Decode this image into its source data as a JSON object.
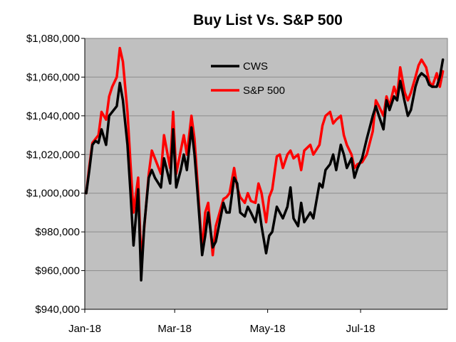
{
  "chart_data": {
    "type": "line",
    "title": "Buy List Vs. S&P 500",
    "xlabel": "",
    "ylabel": "",
    "ylim": [
      940000,
      1080000
    ],
    "y_ticks": [
      940000,
      960000,
      980000,
      1000000,
      1020000,
      1040000,
      1060000,
      1080000
    ],
    "y_tick_labels": [
      "$940,000",
      "$960,000",
      "$980,000",
      "$1,000,000",
      "$1,020,000",
      "$1,040,000",
      "$1,060,000",
      "$1,080,000"
    ],
    "x_range": [
      "2018-01-01",
      "2018-08-27"
    ],
    "x_ticks": [
      "2018-01-01",
      "2018-03-01",
      "2018-05-01",
      "2018-07-01"
    ],
    "x_tick_labels": [
      "Jan-18",
      "Mar-18",
      "May-18",
      "Jul-18"
    ],
    "grid": true,
    "plot_background": "#c0c0c0",
    "legend_position": "top-center",
    "series": [
      {
        "name": "CWS",
        "color": "#000000",
        "x": [
          "2018-01-02",
          "2018-01-04",
          "2018-01-06",
          "2018-01-08",
          "2018-01-10",
          "2018-01-12",
          "2018-01-15",
          "2018-01-17",
          "2018-01-19",
          "2018-01-22",
          "2018-01-24",
          "2018-01-26",
          "2018-01-29",
          "2018-01-31",
          "2018-02-02",
          "2018-02-05",
          "2018-02-07",
          "2018-02-09",
          "2018-02-12",
          "2018-02-14",
          "2018-02-16",
          "2018-02-20",
          "2018-02-22",
          "2018-02-26",
          "2018-02-28",
          "2018-03-02",
          "2018-03-05",
          "2018-03-07",
          "2018-03-09",
          "2018-03-12",
          "2018-03-14",
          "2018-03-16",
          "2018-03-19",
          "2018-03-21",
          "2018-03-23",
          "2018-03-26",
          "2018-03-28",
          "2018-04-02",
          "2018-04-04",
          "2018-04-06",
          "2018-04-09",
          "2018-04-11",
          "2018-04-13",
          "2018-04-16",
          "2018-04-18",
          "2018-04-20",
          "2018-04-23",
          "2018-04-25",
          "2018-04-27",
          "2018-04-30",
          "2018-05-02",
          "2018-05-04",
          "2018-05-07",
          "2018-05-09",
          "2018-05-11",
          "2018-05-14",
          "2018-05-16",
          "2018-05-18",
          "2018-05-21",
          "2018-05-23",
          "2018-05-25",
          "2018-05-29",
          "2018-05-31",
          "2018-06-04",
          "2018-06-06",
          "2018-06-08",
          "2018-06-11",
          "2018-06-13",
          "2018-06-15",
          "2018-06-18",
          "2018-06-20",
          "2018-06-22",
          "2018-06-25",
          "2018-06-27",
          "2018-06-29",
          "2018-07-02",
          "2018-07-05",
          "2018-07-09",
          "2018-07-11",
          "2018-07-13",
          "2018-07-16",
          "2018-07-18",
          "2018-07-20",
          "2018-07-23",
          "2018-07-25",
          "2018-07-27",
          "2018-07-30",
          "2018-08-01",
          "2018-08-03",
          "2018-08-06",
          "2018-08-08",
          "2018-08-10",
          "2018-08-13",
          "2018-08-15",
          "2018-08-17",
          "2018-08-20",
          "2018-08-22",
          "2018-08-24"
        ],
        "y": [
          1000000,
          1012000,
          1025000,
          1027000,
          1026000,
          1033000,
          1025000,
          1040000,
          1042000,
          1045000,
          1057000,
          1048000,
          1025000,
          1000000,
          973000,
          1002000,
          955000,
          983000,
          1008000,
          1012000,
          1008000,
          1003000,
          1018000,
          1005000,
          1033000,
          1003000,
          1012000,
          1020000,
          1012000,
          1034000,
          1020000,
          1000000,
          968000,
          978000,
          990000,
          972000,
          975000,
          995000,
          990000,
          990000,
          1008000,
          1005000,
          990000,
          988000,
          993000,
          990000,
          985000,
          994000,
          983000,
          969000,
          978000,
          980000,
          993000,
          990000,
          987000,
          993000,
          1003000,
          987000,
          983000,
          995000,
          985000,
          990000,
          987000,
          1005000,
          1003000,
          1012000,
          1015000,
          1020000,
          1012000,
          1025000,
          1020000,
          1013000,
          1018000,
          1008000,
          1013000,
          1018000,
          1028000,
          1040000,
          1045000,
          1040000,
          1033000,
          1048000,
          1043000,
          1050000,
          1048000,
          1058000,
          1047000,
          1040000,
          1043000,
          1055000,
          1060000,
          1062000,
          1060000,
          1056000,
          1055000,
          1055000,
          1060000,
          1069000
        ]
      },
      {
        "name": "S&P 500",
        "color": "#ff0000",
        "x": [
          "2018-01-02",
          "2018-01-04",
          "2018-01-06",
          "2018-01-08",
          "2018-01-10",
          "2018-01-12",
          "2018-01-15",
          "2018-01-17",
          "2018-01-19",
          "2018-01-22",
          "2018-01-24",
          "2018-01-26",
          "2018-01-29",
          "2018-01-31",
          "2018-02-02",
          "2018-02-05",
          "2018-02-07",
          "2018-02-09",
          "2018-02-12",
          "2018-02-14",
          "2018-02-16",
          "2018-02-20",
          "2018-02-22",
          "2018-02-26",
          "2018-02-28",
          "2018-03-02",
          "2018-03-05",
          "2018-03-07",
          "2018-03-09",
          "2018-03-12",
          "2018-03-14",
          "2018-03-16",
          "2018-03-19",
          "2018-03-21",
          "2018-03-23",
          "2018-03-26",
          "2018-03-28",
          "2018-04-02",
          "2018-04-04",
          "2018-04-06",
          "2018-04-09",
          "2018-04-11",
          "2018-04-13",
          "2018-04-16",
          "2018-04-18",
          "2018-04-20",
          "2018-04-23",
          "2018-04-25",
          "2018-04-27",
          "2018-04-30",
          "2018-05-02",
          "2018-05-04",
          "2018-05-07",
          "2018-05-09",
          "2018-05-11",
          "2018-05-14",
          "2018-05-16",
          "2018-05-18",
          "2018-05-21",
          "2018-05-23",
          "2018-05-25",
          "2018-05-29",
          "2018-05-31",
          "2018-06-04",
          "2018-06-06",
          "2018-06-08",
          "2018-06-11",
          "2018-06-13",
          "2018-06-15",
          "2018-06-18",
          "2018-06-20",
          "2018-06-22",
          "2018-06-25",
          "2018-06-27",
          "2018-06-29",
          "2018-07-02",
          "2018-07-05",
          "2018-07-09",
          "2018-07-11",
          "2018-07-13",
          "2018-07-16",
          "2018-07-18",
          "2018-07-20",
          "2018-07-23",
          "2018-07-25",
          "2018-07-27",
          "2018-07-30",
          "2018-08-01",
          "2018-08-03",
          "2018-08-06",
          "2018-08-08",
          "2018-08-10",
          "2018-08-13",
          "2018-08-15",
          "2018-08-17",
          "2018-08-20",
          "2018-08-22",
          "2018-08-24"
        ],
        "y": [
          1000000,
          1014000,
          1026000,
          1028000,
          1030000,
          1042000,
          1038000,
          1050000,
          1055000,
          1060000,
          1075000,
          1068000,
          1042000,
          1015000,
          990000,
          1008000,
          965000,
          982000,
          1010000,
          1022000,
          1018000,
          1010000,
          1030000,
          1013000,
          1042000,
          1010000,
          1022000,
          1030000,
          1020000,
          1040000,
          1028000,
          1005000,
          970000,
          990000,
          995000,
          968000,
          983000,
          997000,
          998000,
          1000000,
          1013000,
          1003000,
          998000,
          995000,
          1000000,
          996000,
          995000,
          1005000,
          1000000,
          985000,
          998000,
          1002000,
          1019000,
          1020000,
          1013000,
          1020000,
          1022000,
          1018000,
          1020000,
          1012000,
          1022000,
          1025000,
          1020000,
          1025000,
          1035000,
          1040000,
          1042000,
          1036000,
          1038000,
          1040000,
          1030000,
          1025000,
          1020000,
          1013000,
          1015000,
          1016000,
          1020000,
          1032000,
          1048000,
          1045000,
          1040000,
          1050000,
          1045000,
          1055000,
          1050000,
          1065000,
          1052000,
          1048000,
          1052000,
          1060000,
          1066000,
          1069000,
          1065000,
          1058000,
          1055000,
          1062000,
          1055000,
          1063000
        ]
      }
    ]
  }
}
